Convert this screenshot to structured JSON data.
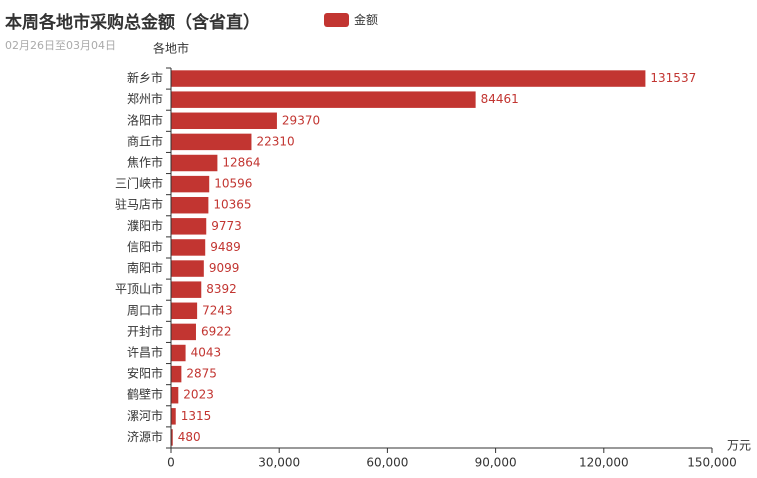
{
  "title": "本周各地市采购总金额（含省直）",
  "subtitle": "02月26日至03月04日",
  "legend": {
    "label": "金额"
  },
  "colors": {
    "bar": "#c23531",
    "axis": "#333333",
    "title": "#333333",
    "subtitle": "#aaaaaa"
  },
  "chart_data": {
    "type": "bar",
    "orientation": "horizontal",
    "title": "本周各地市采购总金额（含省直）",
    "subtitle": "02月26日至03月04日",
    "ylabel": "各地市",
    "xlabel": "万元",
    "xlim": [
      0,
      150000
    ],
    "xticks": [
      "0",
      "30,000",
      "60,000",
      "90,000",
      "120,000",
      "150,000"
    ],
    "xtick_values": [
      0,
      30000,
      60000,
      90000,
      120000,
      150000
    ],
    "grid": false,
    "legend_position": "top",
    "categories": [
      "新乡市",
      "郑州市",
      "洛阳市",
      "商丘市",
      "焦作市",
      "三门峡市",
      "驻马店市",
      "濮阳市",
      "信阳市",
      "南阳市",
      "平顶山市",
      "周口市",
      "开封市",
      "许昌市",
      "安阳市",
      "鹤壁市",
      "漯河市",
      "济源市"
    ],
    "series": [
      {
        "name": "金额",
        "values": [
          131537,
          84461,
          29370,
          22310,
          12864,
          10596,
          10365,
          9773,
          9489,
          9099,
          8392,
          7243,
          6922,
          4043,
          2875,
          2023,
          1315,
          480
        ]
      }
    ]
  }
}
